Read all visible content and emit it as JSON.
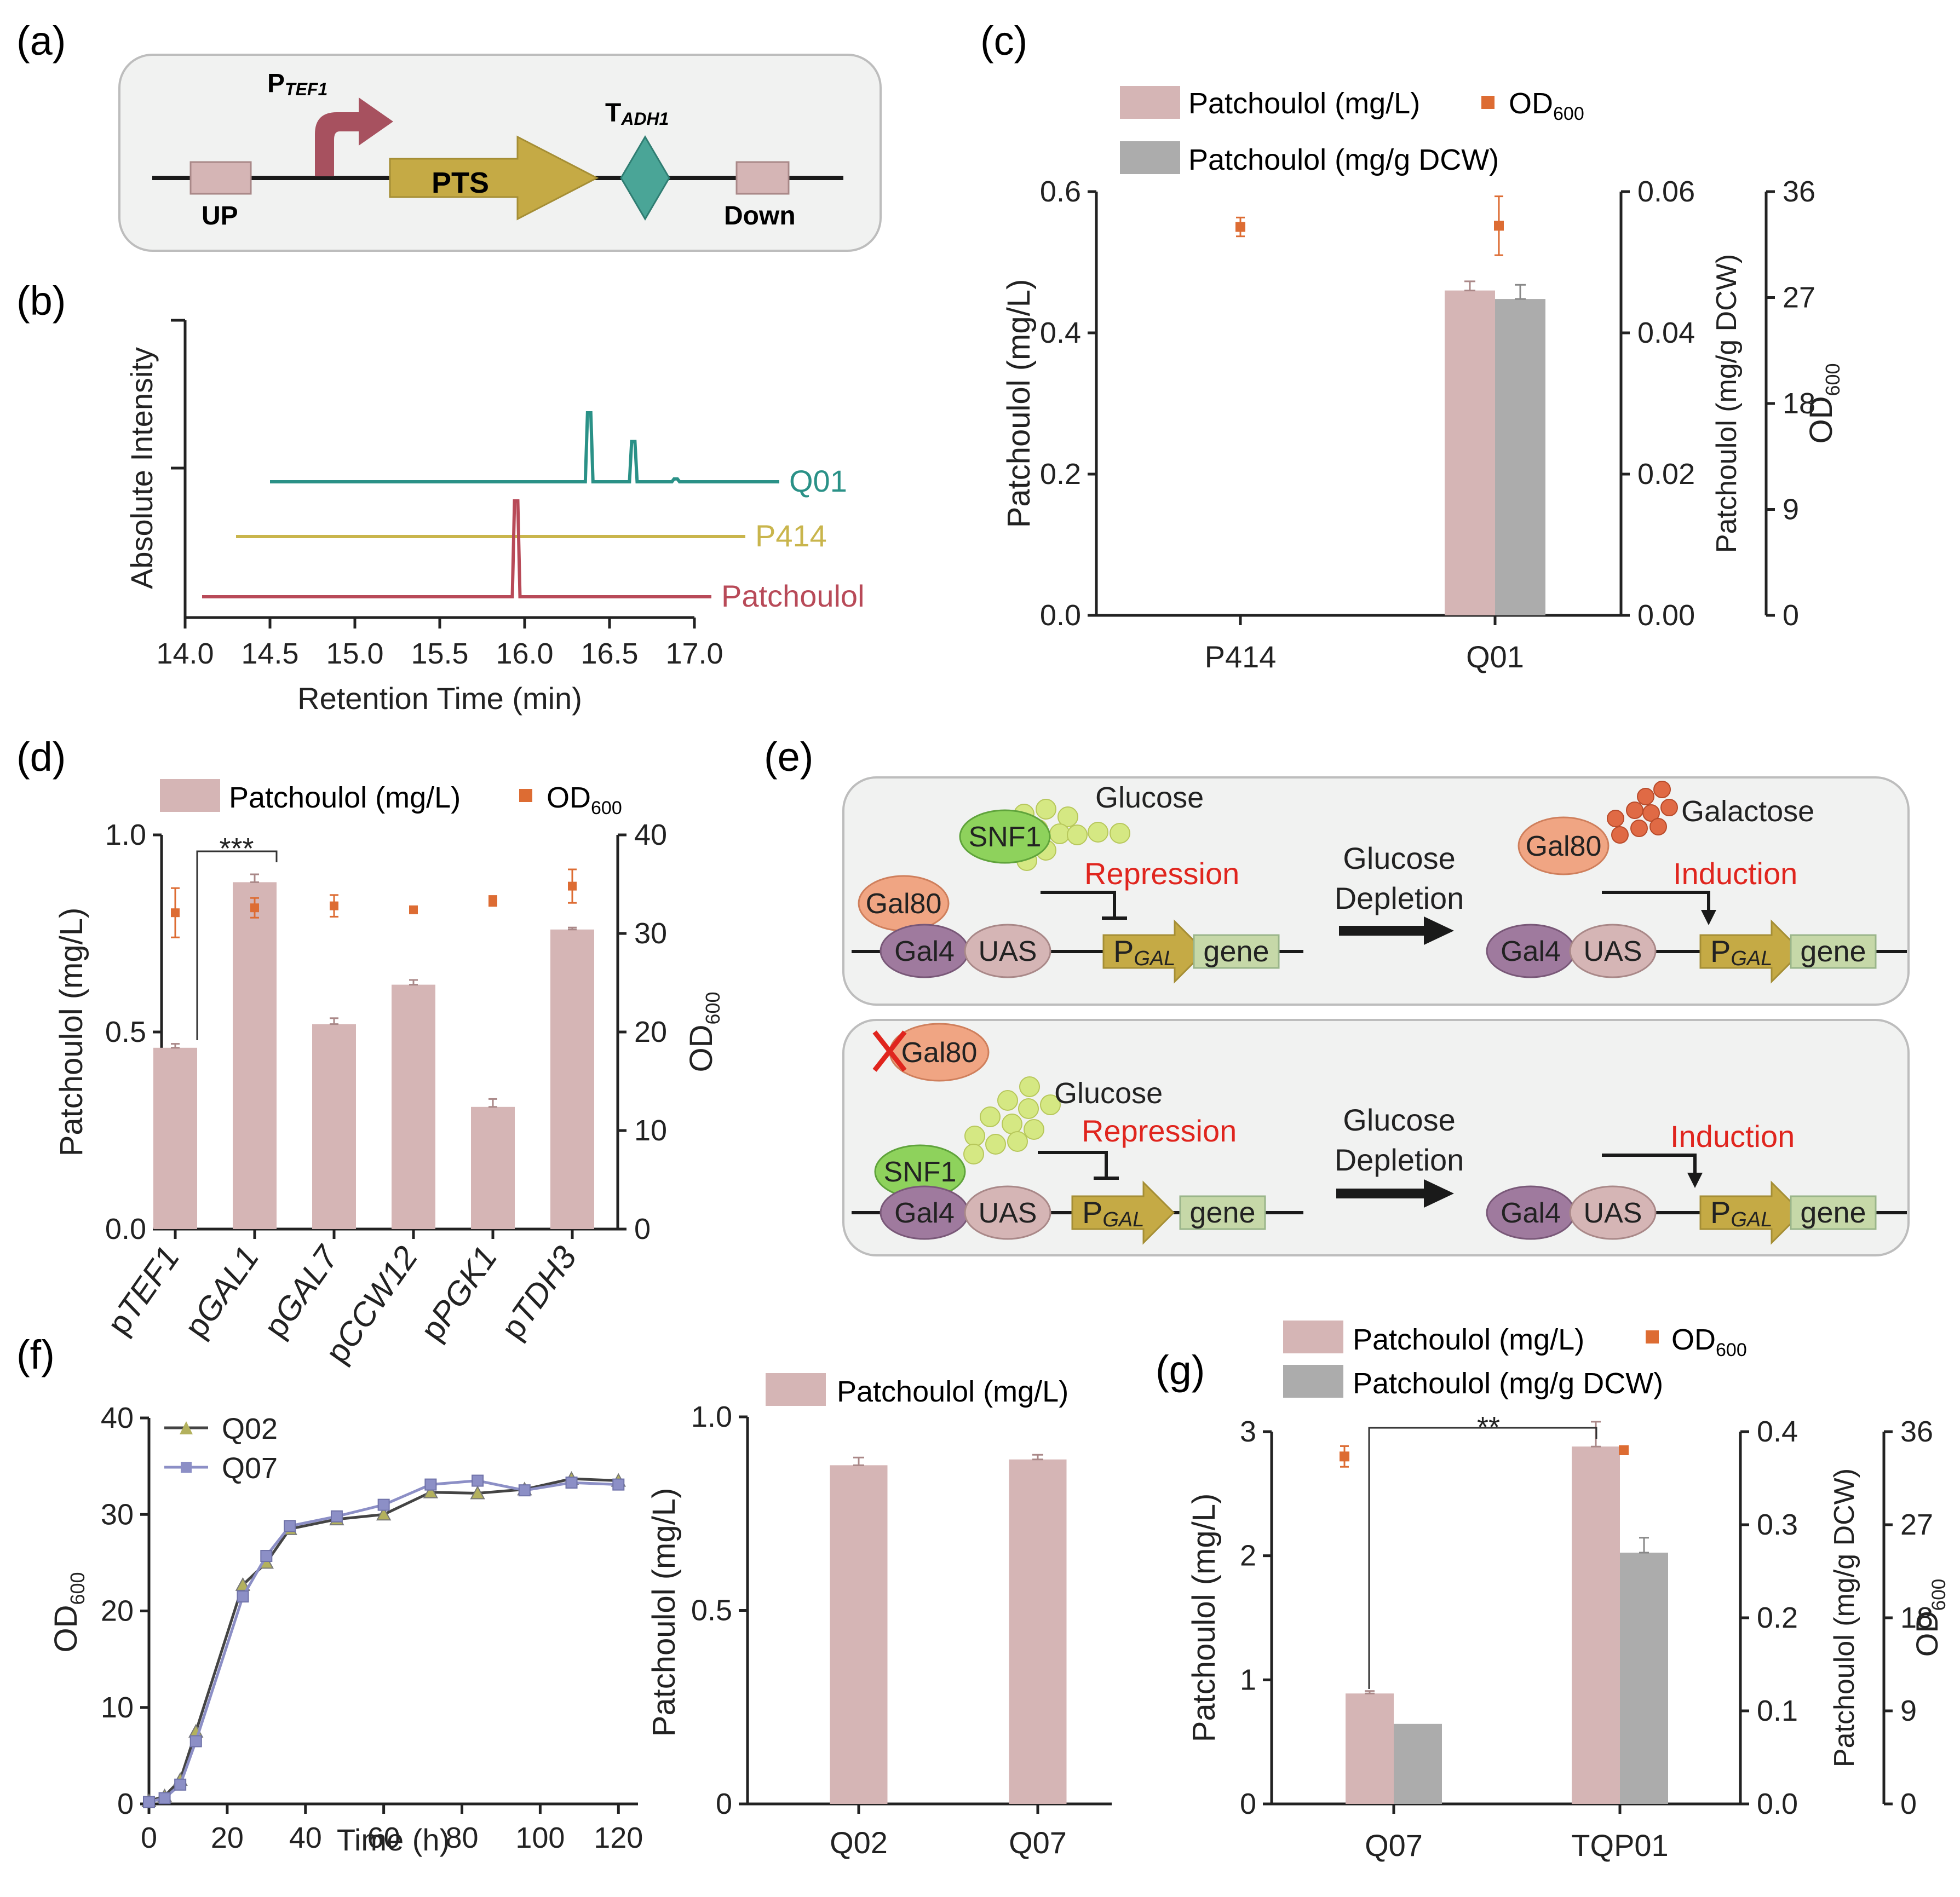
{
  "colors": {
    "pink": "#d5b5b5",
    "grey": "#acacac",
    "orange": "#dd6c33",
    "axis": "#222222",
    "teal": "#2a9187",
    "gold": "#c9b54c",
    "crimson": "#b84a58",
    "red": "#e0251e",
    "ptsGold": "#c5aa45",
    "tealDiamond": "#4aa597",
    "promArrow": "#a7515f",
    "snfGreen": "#8ed25c",
    "gal80Orange": "#f0a583",
    "gal4Purple": "#9f7a9e",
    "uasPink": "#d5b5b5",
    "geneGreen": "#c6d8a8",
    "glucoseDot": "#d5e883",
    "galactoseDot": "#e06a45",
    "q02": "#b3b15d",
    "q07": "#8c8fc6"
  },
  "panel_labels": {
    "a": "(a)",
    "b": "(b)",
    "c": "(c)",
    "d": "(d)",
    "e": "(e)",
    "f": "(f)",
    "g": "(g)"
  },
  "panel_a": {
    "promoter": "P",
    "promoter_sub": "TEF1",
    "gene": "PTS",
    "terminator": "T",
    "terminator_sub": "ADH1",
    "up": "UP",
    "down": "Down"
  },
  "panel_e": {
    "glucose": "Glucose",
    "galactose": "Galactose",
    "snf1": "SNF1",
    "gal80": "Gal80",
    "gal4": "Gal4",
    "uas": "UAS",
    "pgal": "P",
    "pgal_sub": "GAL",
    "gene": "gene",
    "repression": "Repression",
    "induction": "Induction",
    "depletion_1": "Glucose",
    "depletion_2": "Depletion"
  },
  "chart_data": [
    {
      "id": "b",
      "type": "line",
      "xlabel": "Retention Time (min)",
      "ylabel": "Absolute Intensity",
      "xlim": [
        14.0,
        17.0
      ],
      "xticks": [
        14.0,
        14.5,
        15.0,
        15.5,
        16.0,
        16.5,
        17.0
      ],
      "xtick_labels": [
        "14.0",
        "14.5",
        "15.0",
        "15.5",
        "16.0",
        "16.5",
        "17.0"
      ],
      "series": [
        {
          "name": "Q01",
          "start": 14.5,
          "end": 17.5,
          "peaks": [
            {
              "x": 16.38,
              "h": 0.72
            },
            {
              "x": 16.64,
              "h": 0.42
            },
            {
              "x": 16.89,
              "h": 0.03
            }
          ]
        },
        {
          "name": "P414",
          "start": 14.3,
          "end": 17.3,
          "peaks": []
        },
        {
          "name": "Patchoulol",
          "start": 14.1,
          "end": 17.1,
          "peaks": [
            {
              "x": 15.95,
              "h": 1.0
            }
          ]
        }
      ]
    },
    {
      "id": "c",
      "type": "bar",
      "categories": [
        "P414",
        "Q01"
      ],
      "ylabel": "Patchoulol (mg/L)",
      "ylim": [
        0,
        0.6
      ],
      "yticks": [
        "0.0",
        "0.2",
        "0.4",
        "0.6"
      ],
      "y2label": "Patchoulol (mg/g DCW)",
      "y2lim": [
        0,
        0.06
      ],
      "y2ticks": [
        "0.00",
        "0.02",
        "0.04",
        "0.06"
      ],
      "y3label": "OD",
      "y3sub": "600",
      "y3lim": [
        0,
        36
      ],
      "y3ticks": [
        "0",
        "9",
        "18",
        "27",
        "36"
      ],
      "series": [
        {
          "name": "Patchoulol (mg/L)",
          "values": [
            0,
            0.46
          ],
          "err": [
            0,
            0.013
          ]
        },
        {
          "name": "Patchoulol (mg/g DCW)",
          "values": [
            0,
            0.0448
          ],
          "err": [
            0,
            0.002
          ]
        }
      ],
      "od600": {
        "name": "OD",
        "sub": "600",
        "values": [
          33.0,
          33.1
        ],
        "err": [
          0.8,
          2.5
        ]
      }
    },
    {
      "id": "d",
      "type": "bar",
      "categories": [
        "pTEF1",
        "pGAL1",
        "pGAL7",
        "pCCW12",
        "pPGK1",
        "pTDH3"
      ],
      "ylabel": "Patchoulol (mg/L)",
      "ylim": [
        0,
        1.0
      ],
      "yticks": [
        "0.0",
        "0.5",
        "1.0"
      ],
      "y2label": "OD",
      "y2sub": "600",
      "y2lim": [
        0,
        40
      ],
      "y2ticks": [
        "0",
        "10",
        "20",
        "30",
        "40"
      ],
      "series": [
        {
          "name": "Patchoulol (mg/L)",
          "values": [
            0.46,
            0.88,
            0.52,
            0.62,
            0.31,
            0.76
          ],
          "err": [
            0.01,
            0.02,
            0.015,
            0.012,
            0.02,
            0.005
          ]
        }
      ],
      "od600": {
        "name": "OD",
        "sub": "600",
        "values": [
          32.1,
          32.6,
          32.8,
          32.4,
          33.3,
          34.8
        ],
        "err": [
          2.5,
          1.0,
          1.1,
          0.3,
          0.5,
          1.7
        ]
      },
      "significance": "***"
    },
    {
      "id": "f1",
      "type": "line",
      "xlabel": "Time (h)",
      "ylabel": "OD",
      "ysub": "600",
      "xlim": [
        0,
        125
      ],
      "xticks": [
        "0",
        "20",
        "40",
        "60",
        "80",
        "100",
        "120"
      ],
      "ylim": [
        0,
        40
      ],
      "yticks": [
        "0",
        "10",
        "20",
        "30",
        "40"
      ],
      "x": [
        0,
        4,
        8,
        12,
        24,
        30,
        36,
        48,
        60,
        72,
        84,
        96,
        108,
        120
      ],
      "series": [
        {
          "name": "Q02",
          "values": [
            0.3,
            0.8,
            2.5,
            7.5,
            22.7,
            25.0,
            28.5,
            29.5,
            30.0,
            32.3,
            32.2,
            32.6,
            33.7,
            33.5
          ]
        },
        {
          "name": "Q07",
          "values": [
            0.2,
            0.6,
            2.0,
            6.5,
            21.5,
            25.7,
            28.8,
            29.8,
            31.0,
            33.1,
            33.5,
            32.5,
            33.3,
            33.1
          ]
        }
      ]
    },
    {
      "id": "f2",
      "type": "bar",
      "categories": [
        "Q02",
        "Q07"
      ],
      "ylabel": "Patchoulol (mg/L)",
      "ylim": [
        0,
        1.0
      ],
      "yticks": [
        "0",
        "0.5",
        "1.0"
      ],
      "series": [
        {
          "name": "Patchoulol (mg/L)",
          "values": [
            0.875,
            0.89
          ],
          "err": [
            0.02,
            0.012
          ]
        }
      ]
    },
    {
      "id": "g",
      "type": "bar",
      "categories": [
        "Q07",
        "TQP01"
      ],
      "ylabel": "Patchoulol (mg/L)",
      "ylim": [
        0,
        3
      ],
      "yticks": [
        "0",
        "1",
        "2",
        "3"
      ],
      "y2label": "Patchoulol (mg/g DCW)",
      "y2lim": [
        0,
        0.4
      ],
      "y2ticks": [
        "0.0",
        "0.1",
        "0.2",
        "0.3",
        "0.4"
      ],
      "y3label": "OD",
      "y3sub": "600",
      "y3lim": [
        0,
        36
      ],
      "y3ticks": [
        "0",
        "9",
        "18",
        "27",
        "36"
      ],
      "series": [
        {
          "name": "Patchoulol (mg/L)",
          "values": [
            0.89,
            2.88
          ],
          "err": [
            0.02,
            0.2
          ]
        },
        {
          "name": "Patchoulol (mg/g DCW)",
          "values": [
            0.086,
            0.27
          ],
          "err": [
            0,
            0.016
          ]
        }
      ],
      "od600": {
        "name": "OD",
        "sub": "600",
        "values": [
          33.6,
          34.2
        ],
        "err": [
          1.0,
          0.2
        ]
      },
      "significance": "**"
    }
  ]
}
